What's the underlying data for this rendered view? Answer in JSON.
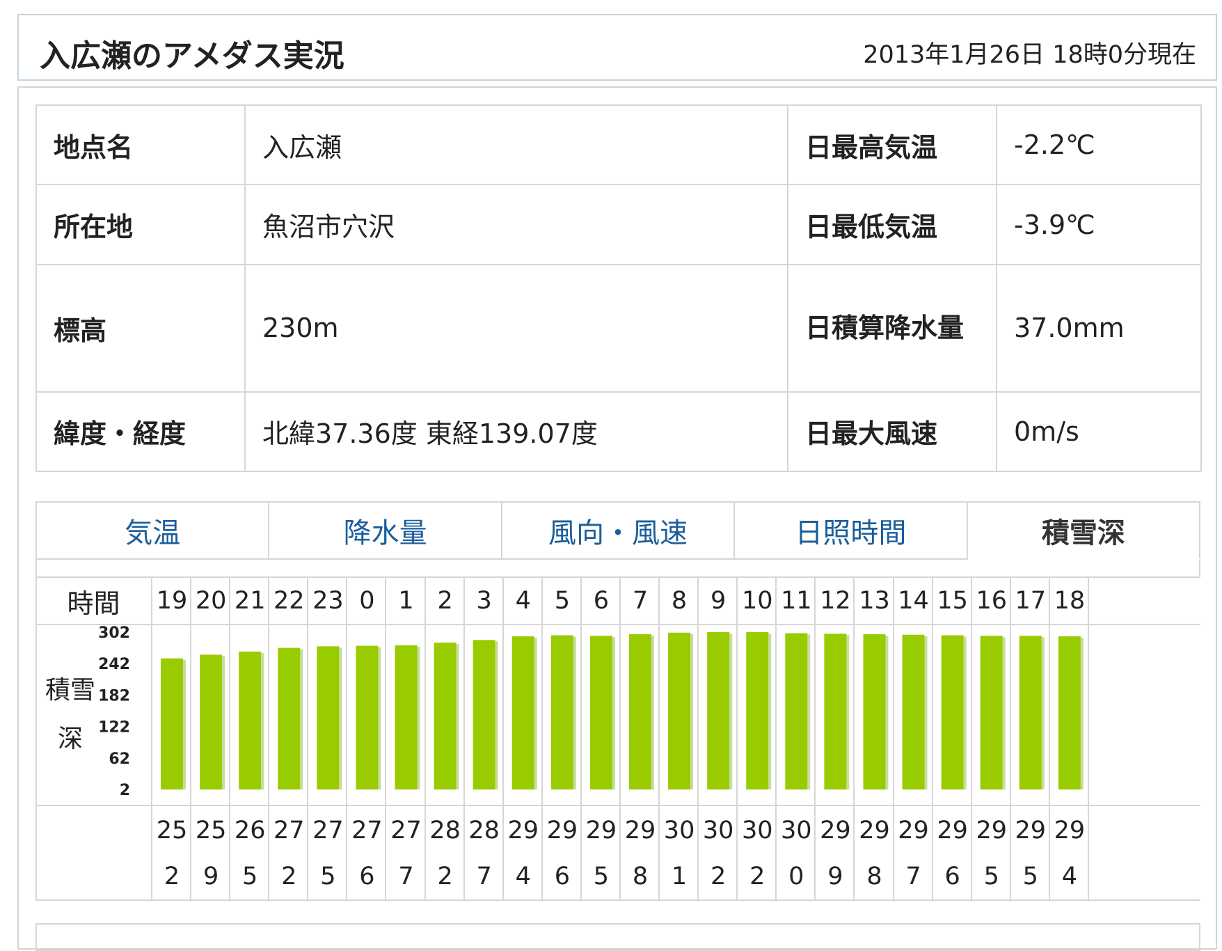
{
  "header": {
    "title": "入広瀬のアメダス実況",
    "timestamp": "2013年1月26日 18時0分現在"
  },
  "info": {
    "rows": [
      {
        "label": "地点名",
        "value": "入広瀬",
        "label2": "日最高気温",
        "value2": "-2.2℃"
      },
      {
        "label": "所在地",
        "value": "魚沼市穴沢",
        "label2": "日最低気温",
        "value2": "-3.9℃"
      },
      {
        "label": "標高",
        "value": "230m",
        "label2": "日積算降水量",
        "value2": "37.0mm"
      },
      {
        "label": "緯度・経度",
        "value": "北緯37.36度 東経139.07度",
        "label2": "日最大風速",
        "value2": "0m/s"
      }
    ]
  },
  "tabs": [
    {
      "label": "気温",
      "active": false
    },
    {
      "label": "降水量",
      "active": false
    },
    {
      "label": "風向・風速",
      "active": false
    },
    {
      "label": "日照時間",
      "active": false
    },
    {
      "label": "積雪深",
      "active": true
    }
  ],
  "table": {
    "hour_label": "時間",
    "row_label": "積雪深",
    "hours": [
      "19",
      "20",
      "21",
      "22",
      "23",
      "0",
      "1",
      "2",
      "3",
      "4",
      "5",
      "6",
      "7",
      "8",
      "9",
      "10",
      "11",
      "12",
      "13",
      "14",
      "15",
      "16",
      "17",
      "18"
    ]
  },
  "chart_data": {
    "type": "bar",
    "categories": [
      "19",
      "20",
      "21",
      "22",
      "23",
      "0",
      "1",
      "2",
      "3",
      "4",
      "5",
      "6",
      "7",
      "8",
      "9",
      "10",
      "11",
      "12",
      "13",
      "14",
      "15",
      "16",
      "17",
      "18"
    ],
    "values": [
      252,
      259,
      265,
      272,
      275,
      276,
      277,
      282,
      287,
      294,
      296,
      295,
      298,
      301,
      302,
      302,
      300,
      299,
      298,
      297,
      296,
      295,
      295,
      294
    ],
    "yticks": [
      2,
      62,
      122,
      182,
      242,
      302
    ],
    "ylim": [
      2,
      302
    ],
    "ylabel": "積雪深",
    "colors": {
      "bar": "#99cc00",
      "bar_shadow": "#c8dca0"
    }
  }
}
